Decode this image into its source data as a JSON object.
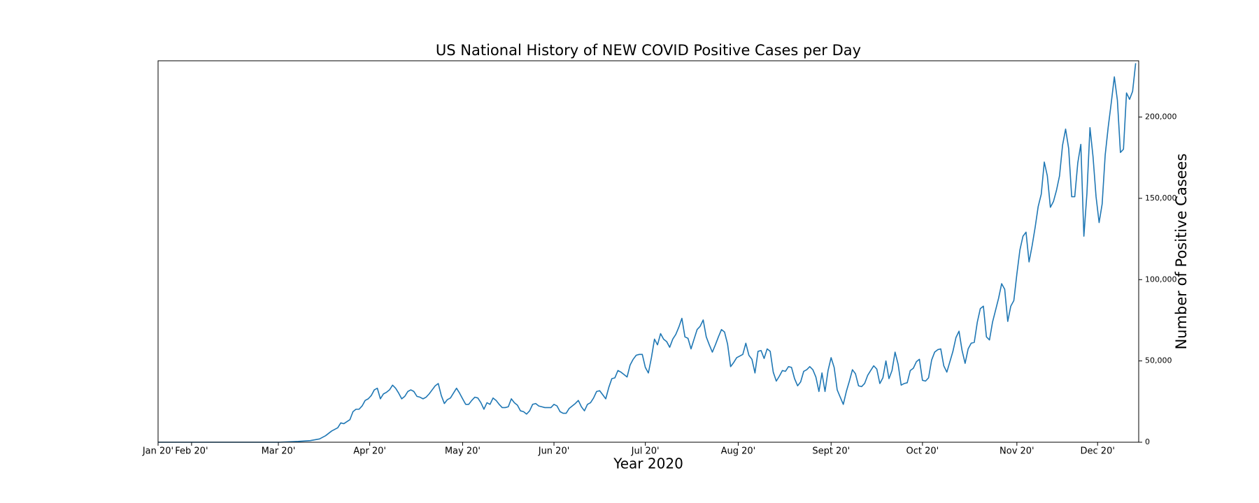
{
  "chart_data": {
    "type": "line",
    "title": "US National History of NEW COVID Positive Cases per Day",
    "x_label": "Year 2020",
    "y_label": "Number of Positive Casees",
    "y_axis_side": "right",
    "xlim": [
      0,
      322
    ],
    "ylim": [
      0,
      234600
    ],
    "xticks": [
      {
        "value": 0,
        "label": "Jan 20'"
      },
      {
        "value": 11,
        "label": "Feb 20'"
      },
      {
        "value": 39.5,
        "label": "Mar 20'"
      },
      {
        "value": 69.5,
        "label": "Apr 20'"
      },
      {
        "value": 100,
        "label": "May 20'"
      },
      {
        "value": 130,
        "label": "Jun 20'"
      },
      {
        "value": 160,
        "label": "Jul 20'"
      },
      {
        "value": 190.5,
        "label": "Aug 20'"
      },
      {
        "value": 221,
        "label": "Sept 20'"
      },
      {
        "value": 251,
        "label": "Oct 20'"
      },
      {
        "value": 282,
        "label": "Nov 20'"
      },
      {
        "value": 308.5,
        "label": "Dec 20'"
      }
    ],
    "yticks": [
      0,
      {
        "value": 50000,
        "label": "50,000"
      },
      {
        "value": 100000,
        "label": "100,000"
      },
      {
        "value": 150000,
        "label": "150,000"
      },
      {
        "value": 200000,
        "label": "200,000"
      }
    ],
    "x": [
      0,
      28,
      40,
      46,
      50,
      53,
      55,
      57,
      59,
      60,
      61,
      63,
      64,
      65,
      66,
      67,
      68,
      69,
      70,
      71,
      72,
      73,
      74,
      75,
      76,
      77,
      78,
      79,
      80,
      81,
      82,
      83,
      84,
      85,
      86,
      87,
      88,
      89,
      90,
      91,
      92,
      93,
      94,
      95,
      96,
      97,
      98,
      99,
      100,
      101,
      102,
      103,
      104,
      105,
      106,
      107,
      108,
      109,
      110,
      111,
      112,
      113,
      114,
      115,
      116,
      117,
      118,
      119,
      120,
      121,
      122,
      123,
      124,
      125,
      126,
      127,
      128,
      129,
      130,
      131,
      132,
      133,
      134,
      135,
      136,
      137,
      138,
      139,
      140,
      141,
      142,
      143,
      144,
      145,
      146,
      147,
      148,
      149,
      150,
      151,
      152,
      153,
      154,
      155,
      156,
      157,
      158,
      159,
      160,
      161,
      162,
      163,
      164,
      165,
      166,
      167,
      168,
      169,
      170,
      171,
      172,
      173,
      174,
      175,
      176,
      177,
      178,
      179,
      180,
      181,
      182,
      183,
      184,
      185,
      186,
      187,
      188,
      189,
      190,
      191,
      192,
      193,
      194,
      195,
      196,
      197,
      198,
      199,
      200,
      201,
      202,
      203,
      204,
      205,
      206,
      207,
      208,
      209,
      210,
      211,
      212,
      213,
      214,
      215,
      216,
      217,
      218,
      219,
      220,
      221,
      222,
      223,
      224,
      225,
      226,
      227,
      228,
      229,
      230,
      231,
      232,
      233,
      234,
      235,
      236,
      237,
      238,
      239,
      240,
      241,
      242,
      243,
      244,
      245,
      246,
      247,
      248,
      249,
      250,
      251,
      252,
      253,
      254,
      255,
      256,
      257,
      258,
      259,
      260,
      261,
      262,
      263,
      264,
      265,
      266,
      267,
      268,
      269,
      270,
      271,
      272,
      273,
      274,
      275,
      276,
      277,
      278,
      279,
      280,
      281,
      282,
      283,
      284,
      285,
      286,
      287,
      288,
      289,
      290,
      291,
      292,
      293,
      294,
      295,
      296,
      297,
      298,
      299,
      300,
      301,
      302,
      303,
      304,
      305,
      306,
      307,
      308,
      309,
      310,
      311,
      312,
      313,
      314,
      315,
      316,
      317,
      318,
      319,
      320,
      321
    ],
    "series": [
      {
        "color": "#1f77b4",
        "values": [
          0,
          0,
          0,
          500,
          1000,
          2000,
          4000,
          6900,
          8900,
          11900,
          11400,
          13900,
          18800,
          20300,
          20300,
          22300,
          25700,
          26700,
          28700,
          32200,
          33200,
          26700,
          29700,
          30700,
          32200,
          35100,
          33200,
          30200,
          26700,
          28200,
          31200,
          32200,
          31200,
          28200,
          27700,
          26700,
          27700,
          29700,
          32200,
          34700,
          36100,
          28700,
          23800,
          26200,
          27200,
          30200,
          33200,
          30200,
          26700,
          23300,
          23300,
          25700,
          27700,
          27200,
          24300,
          20300,
          24300,
          23300,
          27200,
          25700,
          23300,
          21300,
          21300,
          21800,
          26700,
          24300,
          22800,
          19300,
          18800,
          17300,
          19300,
          23300,
          23800,
          22300,
          21800,
          21300,
          21300,
          21300,
          23300,
          22300,
          18800,
          17800,
          17800,
          20800,
          22300,
          23800,
          25700,
          21800,
          19300,
          23300,
          24300,
          27200,
          31200,
          31700,
          29200,
          26700,
          33700,
          39100,
          39600,
          44100,
          43100,
          41600,
          40100,
          47500,
          51000,
          53500,
          54000,
          54000,
          46000,
          42600,
          52000,
          63400,
          59900,
          66800,
          63400,
          61900,
          58400,
          63400,
          66300,
          70800,
          76200,
          64800,
          63900,
          57400,
          63400,
          69300,
          71300,
          75200,
          64800,
          59900,
          55400,
          59900,
          64800,
          69300,
          67800,
          60400,
          46500,
          49000,
          52000,
          53000,
          54000,
          60900,
          53500,
          51000,
          42600,
          55900,
          56400,
          51500,
          57400,
          55900,
          43100,
          37600,
          40600,
          44100,
          43600,
          46500,
          46000,
          39100,
          34700,
          37100,
          43600,
          44600,
          46500,
          44600,
          40100,
          31200,
          42600,
          31200,
          44100,
          52000,
          46000,
          32200,
          27700,
          23300,
          31200,
          37600,
          44600,
          42100,
          34700,
          34200,
          36100,
          41100,
          44100,
          47000,
          45000,
          36100,
          39600,
          50000,
          39100,
          44100,
          55400,
          48000,
          35100,
          36100,
          36600,
          44100,
          45500,
          49500,
          51000,
          38100,
          37600,
          39600,
          50500,
          55400,
          56900,
          57400,
          47000,
          43100,
          49500,
          55900,
          64400,
          68300,
          56400,
          48500,
          57400,
          60900,
          61400,
          73800,
          82200,
          83700,
          64800,
          62900,
          73800,
          81200,
          88600,
          97500,
          94100,
          74300,
          83700,
          87100,
          103500,
          118300,
          126700,
          129200,
          110900,
          120800,
          132200,
          145000,
          152500,
          172300,
          163800,
          144500,
          148000,
          154900,
          163800,
          182700,
          192600,
          180700,
          151000,
          151000,
          171800,
          183200,
          126700,
          153000,
          193500,
          175700,
          151000,
          135100,
          146500,
          176700,
          194000,
          208900,
          224700,
          210400,
          178200,
          180200,
          214800,
          210900,
          215800,
          233100
        ]
      }
    ]
  }
}
